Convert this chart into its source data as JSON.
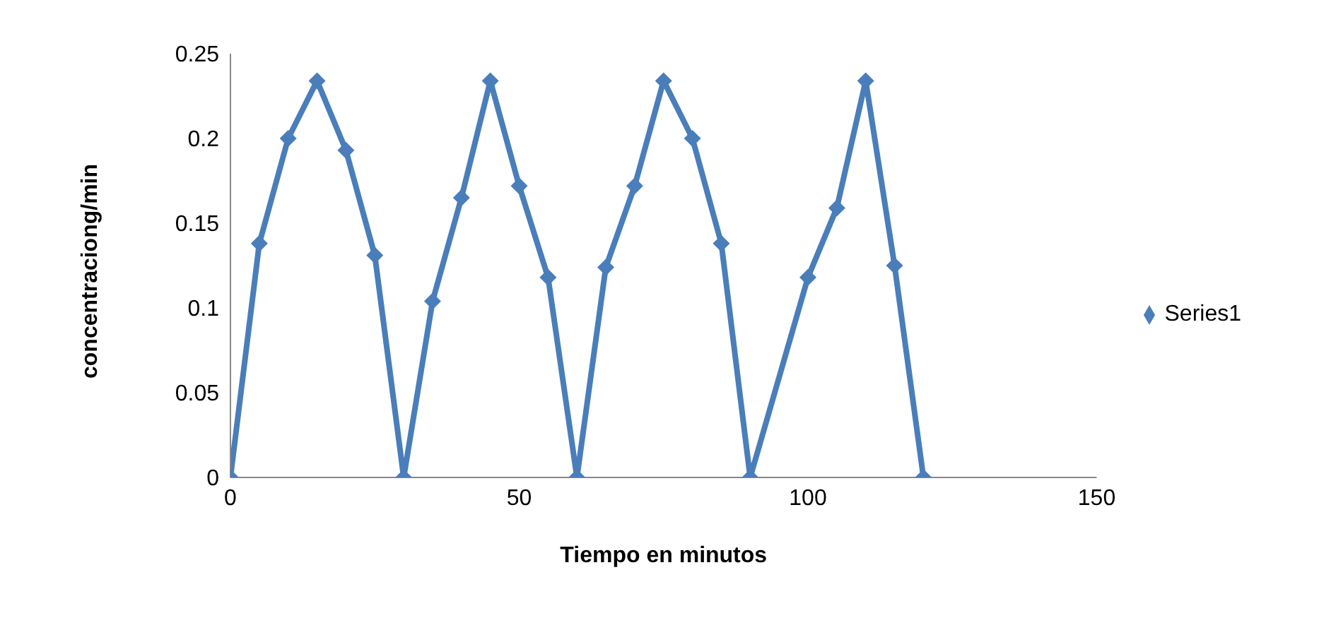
{
  "chart_data": {
    "type": "line",
    "xlabel": "Tiempo en minutos",
    "ylabel": "concentraciong/min",
    "x": [
      0,
      5,
      10,
      15,
      20,
      25,
      30,
      35,
      40,
      45,
      50,
      55,
      60,
      65,
      70,
      75,
      80,
      85,
      90,
      100,
      105,
      110,
      115,
      120
    ],
    "series": [
      {
        "name": "Series1",
        "color": "#4a7ebb",
        "values": [
          0,
          0.138,
          0.2,
          0.234,
          0.193,
          0.131,
          0,
          0.104,
          0.165,
          0.234,
          0.172,
          0.118,
          0,
          0.124,
          0.172,
          0.234,
          0.2,
          0.138,
          0,
          0.118,
          0.159,
          0.234,
          0.125,
          0
        ]
      }
    ],
    "xlim": [
      0,
      150
    ],
    "xticks": [
      0,
      50,
      100,
      150
    ],
    "ylim": [
      0,
      0.25
    ],
    "yticks": [
      0,
      0.05,
      0.1,
      0.15,
      0.2,
      0.25
    ],
    "legend": "right",
    "marker": "diamond"
  }
}
